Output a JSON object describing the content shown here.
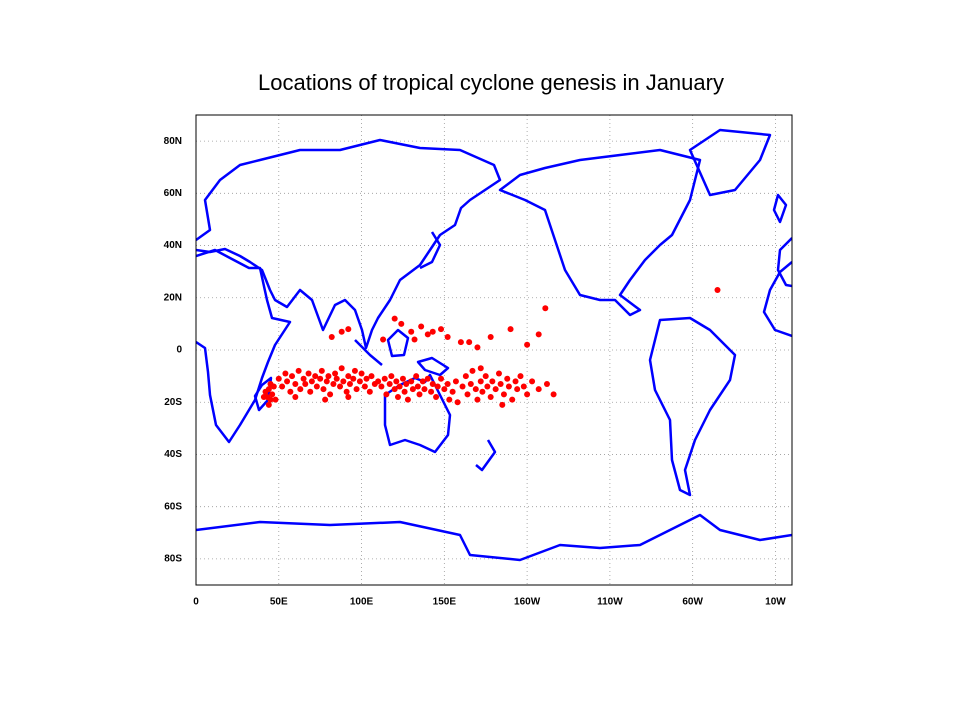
{
  "chart_data": {
    "type": "scatter",
    "title": "Locations of tropical cyclone genesis in January",
    "color": "#ff0000",
    "x": [
      42,
      43,
      44,
      45,
      46,
      47,
      44,
      48,
      41,
      45,
      50,
      52,
      54,
      55,
      57,
      58,
      60,
      62,
      63,
      65,
      66,
      68,
      69,
      70,
      72,
      73,
      75,
      76,
      77,
      79,
      80,
      81,
      83,
      84,
      85,
      87,
      88,
      89,
      91,
      92,
      93,
      95,
      96,
      97,
      99,
      100,
      102,
      103,
      105,
      106,
      108,
      110,
      60,
      78,
      92,
      112,
      114,
      115,
      117,
      118,
      120,
      121,
      122,
      123,
      125,
      126,
      127,
      128,
      130,
      131,
      133,
      134,
      135,
      137,
      138,
      140,
      142,
      143,
      145,
      146,
      148,
      150,
      152,
      153,
      155,
      157,
      158,
      161,
      163,
      164,
      166,
      167,
      169,
      170,
      172,
      173,
      175,
      176,
      178,
      179,
      181,
      183,
      184,
      186,
      188,
      189,
      191,
      193,
      194,
      196,
      198,
      200,
      203,
      207,
      212,
      216,
      185,
      172,
      82,
      88,
      92,
      113,
      120,
      124,
      130,
      132,
      136,
      140,
      143,
      148,
      152,
      160,
      165,
      170,
      178,
      190,
      200,
      207,
      211,
      315
    ],
    "values": [
      -16,
      -18,
      -15,
      -19,
      -17,
      -14,
      -21,
      -19,
      -18,
      -13,
      -11,
      -14,
      -9,
      -12,
      -16,
      -10,
      -13,
      -8,
      -15,
      -11,
      -13,
      -9,
      -16,
      -12,
      -10,
      -14,
      -11,
      -8,
      -15,
      -12,
      -10,
      -17,
      -13,
      -9,
      -11,
      -14,
      -7,
      -12,
      -16,
      -10,
      -13,
      -11,
      -8,
      -15,
      -12,
      -9,
      -14,
      -11,
      -16,
      -10,
      -13,
      -12,
      -18,
      -19,
      -18,
      -14,
      -11,
      -17,
      -13,
      -10,
      -15,
      -12,
      -18,
      -14,
      -11,
      -16,
      -13,
      -19,
      -12,
      -15,
      -10,
      -14,
      -17,
      -12,
      -15,
      -11,
      -16,
      -13,
      -18,
      -14,
      -11,
      -15,
      -13,
      -19,
      -16,
      -12,
      -20,
      -14,
      -10,
      -17,
      -13,
      -8,
      -15,
      -19,
      -12,
      -16,
      -10,
      -14,
      -18,
      -12,
      -15,
      -9,
      -13,
      -17,
      -11,
      -14,
      -19,
      -12,
      -15,
      -10,
      -14,
      -17,
      -12,
      -15,
      -13,
      -17,
      -21,
      -7,
      5,
      7,
      8,
      4,
      12,
      10,
      7,
      4,
      9,
      6,
      7,
      8,
      5,
      3,
      3,
      1,
      5,
      8,
      2,
      6,
      16,
      23
    ],
    "xlim": [
      0,
      360
    ],
    "ylim": [
      -90,
      90
    ],
    "xticks": [
      0,
      {
        "value": 50,
        "label": "50E"
      },
      {
        "value": 100,
        "label": "100E"
      },
      {
        "value": 150,
        "label": "150E"
      },
      {
        "value": 200,
        "label": "160W"
      },
      {
        "value": 250,
        "label": "110W"
      },
      {
        "value": 300,
        "label": "60W"
      },
      {
        "value": 350,
        "label": "10W"
      }
    ],
    "yticks": [
      {
        "value": -80,
        "label": "80S"
      },
      {
        "value": -60,
        "label": "60S"
      },
      {
        "value": -40,
        "label": "40S"
      },
      {
        "value": -20,
        "label": "20S"
      },
      0,
      {
        "value": 20,
        "label": "20N"
      },
      {
        "value": 40,
        "label": "40N"
      },
      {
        "value": 60,
        "label": "60N"
      },
      {
        "value": 80,
        "label": "80N"
      }
    ],
    "grid": true
  }
}
